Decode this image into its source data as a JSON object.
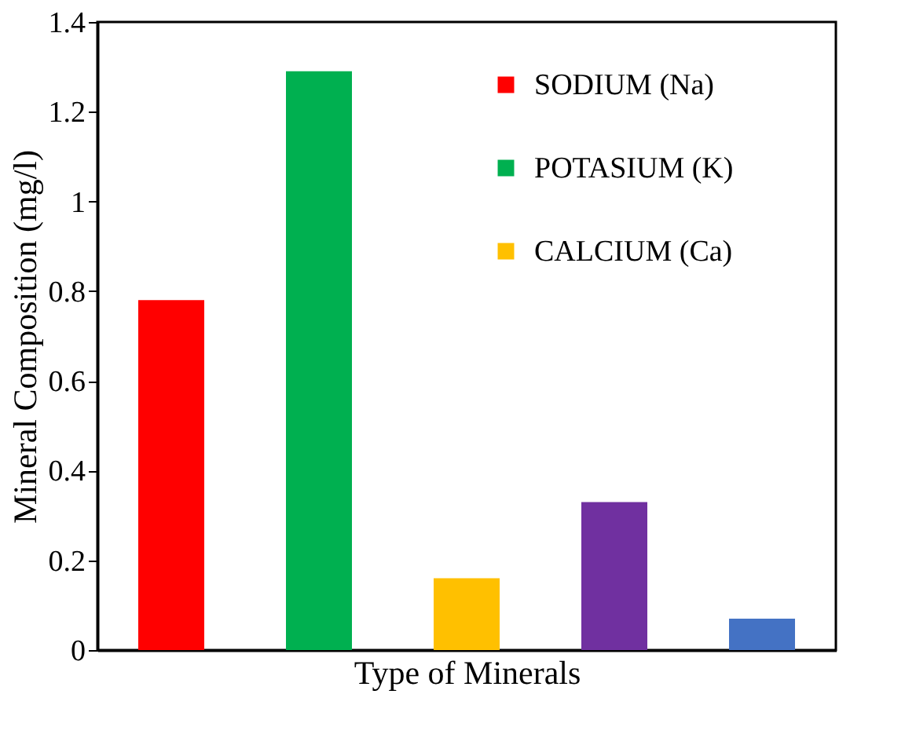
{
  "chart_data": {
    "type": "bar",
    "xlabel": "Type of Minerals",
    "ylabel": "Mineral Composition (mg/l)",
    "categories": [
      null,
      null,
      null,
      null,
      null
    ],
    "series": [
      {
        "name": "SODIUM (Na)",
        "color": "#ff0000",
        "values": [
          0.78,
          null,
          null,
          null,
          null
        ]
      },
      {
        "name": "POTASIUM (K)",
        "color": "#00b050",
        "values": [
          null,
          1.29,
          null,
          null,
          null
        ]
      },
      {
        "name": "CALCIUM (Ca)",
        "color": "#ffc000",
        "values": [
          null,
          null,
          0.16,
          null,
          null
        ]
      },
      {
        "color": "#7030a0",
        "values": [
          null,
          null,
          null,
          0.33,
          null
        ]
      },
      {
        "color": "#4472c4",
        "values": [
          null,
          null,
          null,
          null,
          0.07
        ]
      }
    ],
    "ylim": [
      0,
      1.4
    ],
    "yticks": [
      0,
      0.2,
      0.4,
      0.6,
      0.8,
      1,
      1.2,
      1.4
    ],
    "tick_labels": "y",
    "grid": false,
    "legend": "top right"
  }
}
